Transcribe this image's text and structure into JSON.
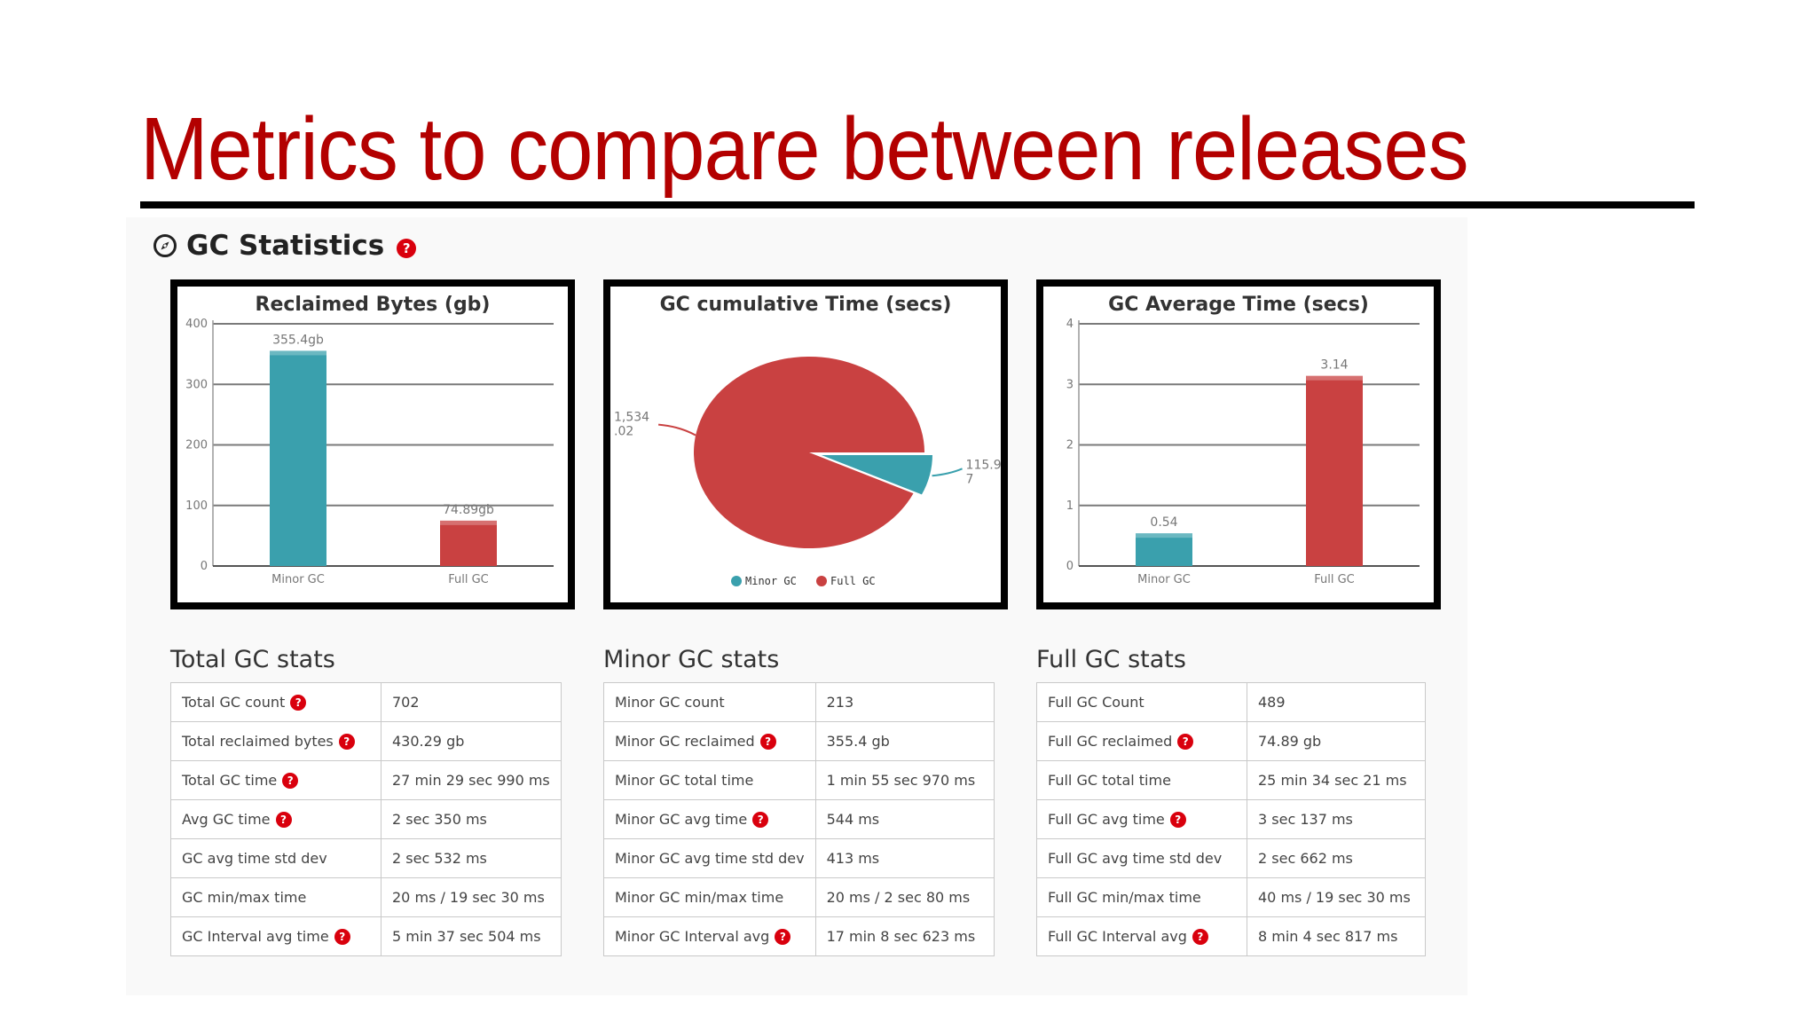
{
  "slide": {
    "title": "Metrics to compare between releases"
  },
  "section": {
    "title": "GC Statistics",
    "icon": "compass-icon",
    "help_icon": "question-circle-icon"
  },
  "colors": {
    "minor": "#3aa0ad",
    "full": "#c94141",
    "title": "#b30000",
    "help": "#d9000d"
  },
  "chart_data": [
    {
      "type": "bar",
      "title": "Reclaimed Bytes (gb)",
      "categories": [
        "Minor GC",
        "Full GC"
      ],
      "values": [
        355.4,
        74.89
      ],
      "data_labels": [
        "355.4gb",
        "74.89gb"
      ],
      "ylim": [
        0,
        400
      ],
      "yticks": [
        0,
        100,
        200,
        300,
        400
      ],
      "grid": true,
      "colors": [
        "#3aa0ad",
        "#c94141"
      ]
    },
    {
      "type": "pie",
      "title": "GC cumulative Time (secs)",
      "labels": [
        "Minor GC",
        "Full GC"
      ],
      "values": [
        115.97,
        1534.02
      ],
      "data_labels": [
        "115.97",
        "1,534.02"
      ],
      "legend": "bottom",
      "colors": [
        "#3aa0ad",
        "#c94141"
      ]
    },
    {
      "type": "bar",
      "title": "GC Average Time (secs)",
      "categories": [
        "Minor GC",
        "Full GC"
      ],
      "values": [
        0.54,
        3.14
      ],
      "data_labels": [
        "0.54",
        "3.14"
      ],
      "ylim": [
        0,
        4
      ],
      "yticks": [
        0,
        1,
        2,
        3,
        4
      ],
      "grid": true,
      "colors": [
        "#3aa0ad",
        "#c94141"
      ]
    }
  ],
  "tables": [
    {
      "title": "Total GC stats",
      "rows": [
        {
          "label": "Total GC count",
          "value": "702",
          "help": true
        },
        {
          "label": "Total reclaimed bytes",
          "value": "430.29 gb",
          "help": true
        },
        {
          "label": "Total GC time",
          "value": "27 min 29 sec 990 ms",
          "help": true
        },
        {
          "label": "Avg GC time",
          "value": "2 sec 350 ms",
          "help": true
        },
        {
          "label": "GC avg time std dev",
          "value": "2 sec 532 ms",
          "help": false
        },
        {
          "label": "GC min/max time",
          "value": "20 ms / 19 sec 30 ms",
          "help": false
        },
        {
          "label": "GC Interval avg time",
          "value": "5 min 37 sec 504 ms",
          "help": true
        }
      ]
    },
    {
      "title": "Minor GC stats",
      "rows": [
        {
          "label": "Minor GC count",
          "value": "213",
          "help": false
        },
        {
          "label": "Minor GC reclaimed",
          "value": "355.4 gb",
          "help": true
        },
        {
          "label": "Minor GC total time",
          "value": "1 min 55 sec 970 ms",
          "help": false
        },
        {
          "label": "Minor GC avg time",
          "value": "544 ms",
          "help": true
        },
        {
          "label": "Minor GC avg time std dev",
          "value": "413 ms",
          "help": false
        },
        {
          "label": "Minor GC min/max time",
          "value": "20 ms / 2 sec 80 ms",
          "help": false
        },
        {
          "label": "Minor GC Interval avg",
          "value": "17 min 8 sec 623 ms",
          "help": true
        }
      ]
    },
    {
      "title": "Full GC stats",
      "rows": [
        {
          "label": "Full GC Count",
          "value": "489",
          "help": false
        },
        {
          "label": "Full GC reclaimed",
          "value": "74.89 gb",
          "help": true
        },
        {
          "label": "Full GC total time",
          "value": "25 min 34 sec 21 ms",
          "help": false
        },
        {
          "label": "Full GC avg time",
          "value": "3 sec 137 ms",
          "help": true
        },
        {
          "label": "Full GC avg time std dev",
          "value": "2 sec 662 ms",
          "help": false
        },
        {
          "label": "Full GC min/max time",
          "value": "40 ms / 19 sec 30 ms",
          "help": false
        },
        {
          "label": "Full GC Interval avg",
          "value": "8 min 4 sec 817 ms",
          "help": true
        }
      ]
    }
  ]
}
